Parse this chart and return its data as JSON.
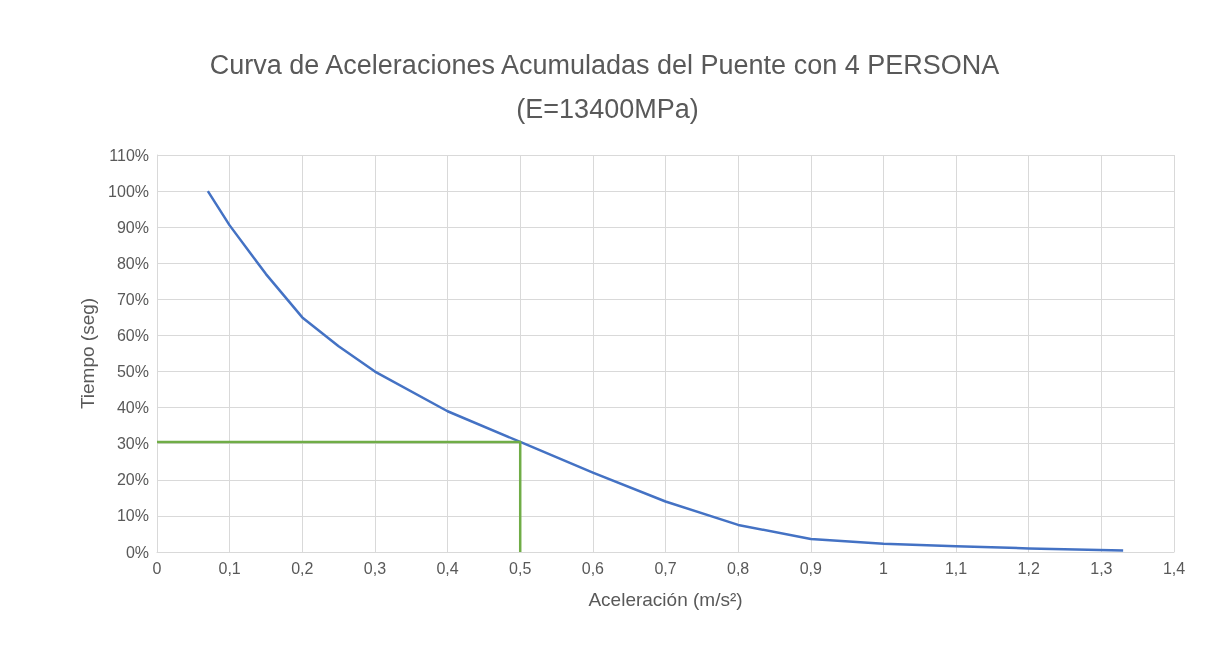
{
  "chart_data": {
    "type": "line",
    "title": "Curva de Aceleraciones Acumuladas del Puente con 4 PERSONA (E=13400MPa)",
    "xlabel": "Aceleración (m/s²)",
    "ylabel": "Tiempo (seg)",
    "xlim": [
      0,
      1.4
    ],
    "xticks": [
      0,
      {
        "value": 0.1,
        "label": "0,1"
      },
      {
        "value": 0.2,
        "label": "0,2"
      },
      {
        "value": 0.3,
        "label": "0,3"
      },
      {
        "value": 0.4,
        "label": "0,4"
      },
      {
        "value": 0.5,
        "label": "0,5"
      },
      {
        "value": 0.6,
        "label": "0,6"
      },
      {
        "value": 0.7,
        "label": "0,7"
      },
      {
        "value": 0.8,
        "label": "0,8"
      },
      {
        "value": 0.9,
        "label": "0,9"
      },
      1,
      {
        "value": 1.1,
        "label": "1,1"
      },
      {
        "value": 1.2,
        "label": "1,2"
      },
      {
        "value": 1.3,
        "label": "1,3"
      },
      {
        "value": 1.4,
        "label": "1,4"
      }
    ],
    "ylim": [
      0,
      110
    ],
    "yticks": [
      {
        "value": 0,
        "label": "0%"
      },
      {
        "value": 10,
        "label": "10%"
      },
      {
        "value": 20,
        "label": "20%"
      },
      {
        "value": 30,
        "label": "30%"
      },
      {
        "value": 40,
        "label": "40%"
      },
      {
        "value": 50,
        "label": "50%"
      },
      {
        "value": 60,
        "label": "60%"
      },
      {
        "value": 70,
        "label": "70%"
      },
      {
        "value": 80,
        "label": "80%"
      },
      {
        "value": 90,
        "label": "90%"
      },
      {
        "value": 100,
        "label": "100%"
      },
      {
        "value": 110,
        "label": "110%"
      }
    ],
    "grid": true,
    "marker": "none",
    "line_style": "solid",
    "series": [
      {
        "color": "#4472c4",
        "x": [
          0.07,
          0.1,
          0.15,
          0.2,
          0.25,
          0.3,
          0.4,
          0.5,
          0.6,
          0.7,
          0.8,
          0.9,
          1.0,
          1.1,
          1.2,
          1.33
        ],
        "values": [
          100,
          90.5,
          77,
          65,
          57,
          50,
          39,
          30.5,
          22,
          14,
          7.5,
          3.6,
          2.3,
          1.6,
          1.0,
          0.4
        ]
      },
      {
        "color": "#70ad47",
        "x": [
          0,
          0.5,
          0.5
        ],
        "values": [
          30.5,
          30.5,
          0
        ]
      }
    ]
  }
}
